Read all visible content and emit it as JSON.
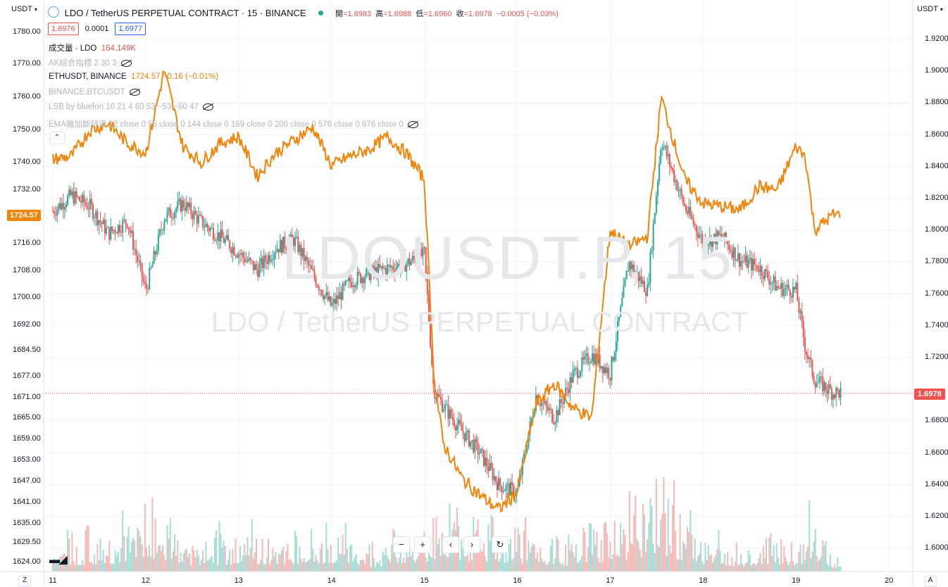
{
  "toolbar": {
    "left_currency": "USDT",
    "right_currency": "USDT",
    "symbol_title": "LDO / TetherUS PERPETUAL CONTRACT · 15 · BINANCE",
    "ohlc": {
      "open_label": "開",
      "open": "=1.6983",
      "high_label": "高",
      "high": "=1.6988",
      "low_label": "低",
      "low": "=1.6960",
      "close_label": "收",
      "close": "=1.6978",
      "change": "−0.0005 (−0.03%)"
    },
    "bid": "1.6976",
    "spread": "0.0001",
    "ask": "1.6977"
  },
  "legend": {
    "volume_label": "成交量 · LDO",
    "volume_value": "164.149K",
    "ak_indicator": "AK綜合指標 2 30 3",
    "eth_symbol": "ETHUSDT, BINANCE",
    "eth_value": "1724.57 −0.16 (−0.01%)",
    "btc_symbol": "BINANCE:BTCUSDT",
    "lsb": "LSB by bluefon 10 21 4 60 53 −53 −60 47",
    "ema": "EMA雜加斷隧道 12 close 0 55 close 0 144 close 0 169 close 0 200 close 0 576 close 0 676 close 0"
  },
  "watermark": {
    "big": "LDOUSDT.P, 15",
    "small": "LDO / TetherUS PERPETUAL CONTRACT"
  },
  "price_pills": {
    "ldo_last": "1.6978",
    "eth_last": "1724.57"
  },
  "colors": {
    "up": "#26a69a",
    "down": "#ef5350",
    "eth": "#f2840a",
    "vol_up": "#a7dcd6",
    "vol_down": "#f7b9b8",
    "grid": "#f0f3fa"
  },
  "icons": [
    "settings-chevron-icon",
    "eye-hidden-icon",
    "tradingview-logo-icon",
    "zoom-out-icon",
    "zoom-in-icon",
    "scroll-left-icon",
    "scroll-right-icon",
    "reset-icon",
    "timezone-icon",
    "auto-scale-icon"
  ],
  "nav_buttons": [
    "−",
    "+",
    "‹",
    "›",
    "↻"
  ],
  "bottom": {
    "z": "Z",
    "a": "A"
  },
  "chart_data": {
    "type": "line",
    "title": "LDO / TetherUS PERPETUAL CONTRACT · 15 · BINANCE",
    "x_ticks": [
      "11",
      "12",
      "13",
      "14",
      "15",
      "16",
      "17",
      "18",
      "19",
      "20"
    ],
    "left_axis_ticks": [
      "1780.00",
      "1770.00",
      "1760.00",
      "1750.00",
      "1740.00",
      "1732.00",
      "1724.57",
      "1716.00",
      "1708.00",
      "1700.00",
      "1692.00",
      "1684.50",
      "1677.00",
      "1671.00",
      "1665.00",
      "1659.00",
      "1653.00",
      "1647.00",
      "1641.00",
      "1635.00",
      "1629.50",
      "1624.00"
    ],
    "right_axis_ticks": [
      "1.9200",
      "1.9000",
      "1.8800",
      "1.8600",
      "1.8400",
      "1.8200",
      "1.8000",
      "1.7800",
      "1.7600",
      "1.7400",
      "1.7200",
      "1.6978",
      "1.6800",
      "1.6600",
      "1.6400",
      "1.6200",
      "1.6000"
    ],
    "right_ylim": [
      1.5995,
      1.9255
    ],
    "series": [
      {
        "name": "LDOUSDT.P",
        "axis": "right",
        "style": "candles",
        "x": [
          11.0,
          11.2,
          11.4,
          11.6,
          11.8,
          12.0,
          12.2,
          12.4,
          12.6,
          12.8,
          13.0,
          13.2,
          13.4,
          13.6,
          13.8,
          14.0,
          14.2,
          14.4,
          14.6,
          14.8,
          15.0,
          15.1,
          15.2,
          15.4,
          15.6,
          15.8,
          16.0,
          16.2,
          16.4,
          16.6,
          16.8,
          17.0,
          17.2,
          17.4,
          17.55,
          17.8,
          18.0,
          18.2,
          18.4,
          18.6,
          18.8,
          19.0,
          19.1,
          19.2,
          19.4
        ],
        "values": [
          1.812,
          1.822,
          1.815,
          1.798,
          1.806,
          1.762,
          1.808,
          1.817,
          1.805,
          1.796,
          1.786,
          1.775,
          1.789,
          1.794,
          1.772,
          1.752,
          1.768,
          1.773,
          1.776,
          1.779,
          1.785,
          1.7,
          1.69,
          1.674,
          1.66,
          1.64,
          1.635,
          1.696,
          1.682,
          1.709,
          1.722,
          1.71,
          1.78,
          1.762,
          1.857,
          1.815,
          1.793,
          1.796,
          1.781,
          1.777,
          1.764,
          1.762,
          1.726,
          1.706,
          1.698
        ]
      },
      {
        "name": "ETHUSDT, BINANCE",
        "axis": "left",
        "style": "line",
        "x": [
          11.0,
          11.2,
          11.4,
          11.6,
          11.8,
          12.0,
          12.2,
          12.4,
          12.6,
          12.8,
          13.0,
          13.2,
          13.4,
          13.6,
          13.8,
          14.0,
          14.2,
          14.4,
          14.6,
          14.8,
          15.0,
          15.1,
          15.2,
          15.4,
          15.6,
          15.8,
          16.0,
          16.2,
          16.4,
          16.6,
          16.8,
          17.0,
          17.2,
          17.4,
          17.55,
          17.8,
          18.0,
          18.2,
          18.4,
          18.6,
          18.8,
          19.0,
          19.1,
          19.2,
          19.4
        ],
        "values": [
          1741,
          1742,
          1750,
          1752,
          1746,
          1743,
          1768,
          1745,
          1740,
          1746,
          1748,
          1736,
          1743,
          1747,
          1751,
          1739,
          1742,
          1744,
          1748,
          1743,
          1735,
          1678,
          1658,
          1648,
          1643,
          1639,
          1644,
          1669,
          1675,
          1668,
          1665,
          1720,
          1715,
          1718,
          1760,
          1735,
          1728,
          1727,
          1726,
          1733,
          1732,
          1745,
          1742,
          1720,
          1724.57
        ]
      },
      {
        "name": "成交量",
        "axis": "volume",
        "style": "histogram",
        "x": [
          11.0,
          11.5,
          12.0,
          12.5,
          13.0,
          13.5,
          14.0,
          14.5,
          15.0,
          15.2,
          15.5,
          16.0,
          16.5,
          17.0,
          17.55,
          18.0,
          18.5,
          19.0,
          19.2,
          19.4
        ],
        "values": [
          42,
          30,
          75,
          28,
          40,
          35,
          45,
          25,
          50,
          78,
          40,
          48,
          30,
          55,
          85,
          40,
          28,
          35,
          60,
          18
        ]
      }
    ]
  }
}
